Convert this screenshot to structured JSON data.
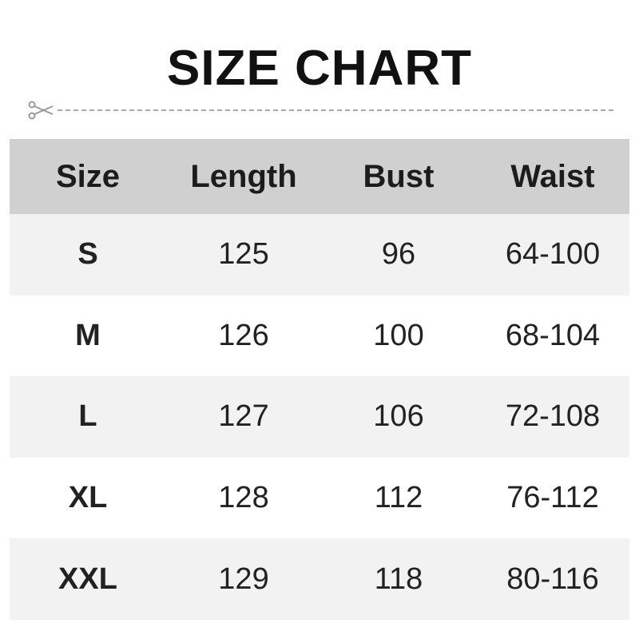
{
  "title": "SIZE CHART",
  "cut_icon": "scissors-icon",
  "colors": {
    "header_bg": "#d0d0d0",
    "stripe_bg": "#f2f2f2",
    "text": "#1a1a1a"
  },
  "table": {
    "headers": [
      "Size",
      "Length",
      "Bust",
      "Waist"
    ],
    "rows": [
      [
        "S",
        "125",
        "96",
        "64-100"
      ],
      [
        "M",
        "126",
        "100",
        "68-104"
      ],
      [
        "L",
        "127",
        "106",
        "72-108"
      ],
      [
        "XL",
        "128",
        "112",
        "76-112"
      ],
      [
        "XXL",
        "129",
        "118",
        "80-116"
      ]
    ]
  }
}
